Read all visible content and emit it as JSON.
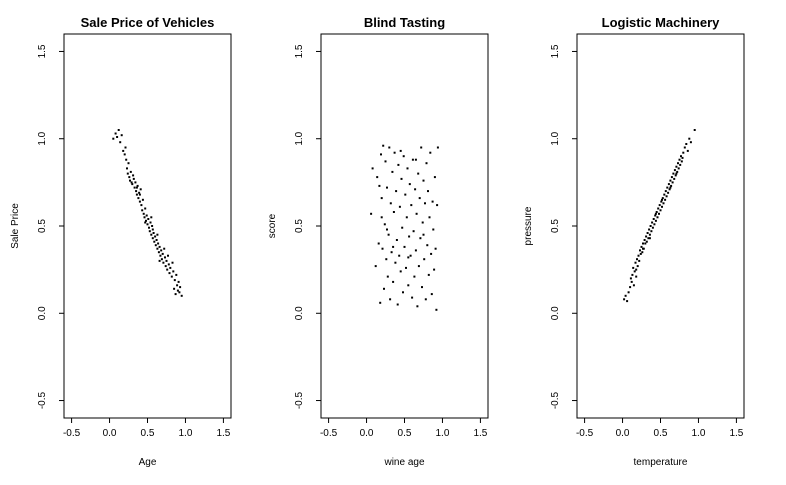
{
  "chart_data": [
    {
      "type": "scatter",
      "title": "Sale Price of Vehicles",
      "xlabel": "Age",
      "ylabel": "Sale Price",
      "xlim": [
        -0.6,
        1.6
      ],
      "ylim": [
        -0.6,
        1.6
      ],
      "x_ticks": [
        "-0.5",
        "0.0",
        "0.5",
        "1.0",
        "1.5"
      ],
      "y_ticks": [
        "-0.5",
        "0.0",
        "0.5",
        "1.0",
        "1.5"
      ],
      "grid": false,
      "points": [
        [
          0.05,
          1.0
        ],
        [
          0.08,
          1.03
        ],
        [
          0.1,
          1.01
        ],
        [
          0.12,
          1.05
        ],
        [
          0.14,
          0.98
        ],
        [
          0.16,
          1.02
        ],
        [
          0.18,
          0.93
        ],
        [
          0.2,
          0.91
        ],
        [
          0.21,
          0.95
        ],
        [
          0.22,
          0.88
        ],
        [
          0.23,
          0.83
        ],
        [
          0.24,
          0.8
        ],
        [
          0.25,
          0.86
        ],
        [
          0.26,
          0.78
        ],
        [
          0.27,
          0.76
        ],
        [
          0.28,
          0.81
        ],
        [
          0.3,
          0.74
        ],
        [
          0.31,
          0.79
        ],
        [
          0.32,
          0.77
        ],
        [
          0.33,
          0.72
        ],
        [
          0.34,
          0.75
        ],
        [
          0.35,
          0.7
        ],
        [
          0.36,
          0.68
        ],
        [
          0.37,
          0.73
        ],
        [
          0.38,
          0.66
        ],
        [
          0.39,
          0.69
        ],
        [
          0.4,
          0.64
        ],
        [
          0.41,
          0.71
        ],
        [
          0.42,
          0.62
        ],
        [
          0.43,
          0.59
        ],
        [
          0.44,
          0.65
        ],
        [
          0.45,
          0.57
        ],
        [
          0.46,
          0.55
        ],
        [
          0.47,
          0.6
        ],
        [
          0.48,
          0.53
        ],
        [
          0.49,
          0.56
        ],
        [
          0.5,
          0.51
        ],
        [
          0.51,
          0.54
        ],
        [
          0.52,
          0.49
        ],
        [
          0.53,
          0.47
        ],
        [
          0.54,
          0.52
        ],
        [
          0.55,
          0.45
        ],
        [
          0.56,
          0.5
        ],
        [
          0.57,
          0.43
        ],
        [
          0.58,
          0.46
        ],
        [
          0.59,
          0.41
        ],
        [
          0.6,
          0.44
        ],
        [
          0.61,
          0.39
        ],
        [
          0.62,
          0.42
        ],
        [
          0.63,
          0.37
        ],
        [
          0.64,
          0.4
        ],
        [
          0.65,
          0.35
        ],
        [
          0.66,
          0.38
        ],
        [
          0.67,
          0.33
        ],
        [
          0.68,
          0.36
        ],
        [
          0.69,
          0.31
        ],
        [
          0.7,
          0.34
        ],
        [
          0.71,
          0.29
        ],
        [
          0.72,
          0.37
        ],
        [
          0.73,
          0.32
        ],
        [
          0.74,
          0.27
        ],
        [
          0.75,
          0.3
        ],
        [
          0.76,
          0.25
        ],
        [
          0.77,
          0.33
        ],
        [
          0.78,
          0.28
        ],
        [
          0.79,
          0.23
        ],
        [
          0.8,
          0.26
        ],
        [
          0.82,
          0.21
        ],
        [
          0.83,
          0.29
        ],
        [
          0.84,
          0.24
        ],
        [
          0.85,
          0.14
        ],
        [
          0.86,
          0.19
        ],
        [
          0.87,
          0.11
        ],
        [
          0.88,
          0.22
        ],
        [
          0.89,
          0.16
        ],
        [
          0.9,
          0.13
        ],
        [
          0.91,
          0.18
        ],
        [
          0.92,
          0.12
        ],
        [
          0.93,
          0.15
        ],
        [
          0.95,
          0.1
        ],
        [
          0.4,
          0.68
        ],
        [
          0.36,
          0.72
        ],
        [
          0.57,
          0.48
        ],
        [
          0.63,
          0.45
        ],
        [
          0.47,
          0.52
        ],
        [
          0.29,
          0.75
        ],
        [
          0.66,
          0.3
        ],
        [
          0.55,
          0.55
        ]
      ]
    },
    {
      "type": "scatter",
      "title": "Blind Tasting",
      "xlabel": "wine age",
      "ylabel": "score",
      "xlim": [
        -0.6,
        1.6
      ],
      "ylim": [
        -0.6,
        1.6
      ],
      "x_ticks": [
        "-0.5",
        "0.0",
        "0.5",
        "1.0",
        "1.5"
      ],
      "y_ticks": [
        "-0.5",
        "0.0",
        "0.5",
        "1.0",
        "1.5"
      ],
      "grid": false,
      "points": [
        [
          0.06,
          0.57
        ],
        [
          0.08,
          0.83
        ],
        [
          0.12,
          0.27
        ],
        [
          0.14,
          0.78
        ],
        [
          0.16,
          0.4
        ],
        [
          0.18,
          0.06
        ],
        [
          0.19,
          0.91
        ],
        [
          0.2,
          0.66
        ],
        [
          0.21,
          0.37
        ],
        [
          0.22,
          0.96
        ],
        [
          0.23,
          0.14
        ],
        [
          0.24,
          0.51
        ],
        [
          0.25,
          0.87
        ],
        [
          0.26,
          0.31
        ],
        [
          0.27,
          0.72
        ],
        [
          0.28,
          0.21
        ],
        [
          0.29,
          0.45
        ],
        [
          0.3,
          0.95
        ],
        [
          0.31,
          0.08
        ],
        [
          0.32,
          0.63
        ],
        [
          0.33,
          0.35
        ],
        [
          0.34,
          0.81
        ],
        [
          0.35,
          0.18
        ],
        [
          0.36,
          0.58
        ],
        [
          0.37,
          0.92
        ],
        [
          0.38,
          0.29
        ],
        [
          0.39,
          0.7
        ],
        [
          0.4,
          0.42
        ],
        [
          0.41,
          0.05
        ],
        [
          0.42,
          0.85
        ],
        [
          0.43,
          0.33
        ],
        [
          0.44,
          0.61
        ],
        [
          0.45,
          0.24
        ],
        [
          0.46,
          0.77
        ],
        [
          0.47,
          0.49
        ],
        [
          0.48,
          0.12
        ],
        [
          0.49,
          0.9
        ],
        [
          0.5,
          0.38
        ],
        [
          0.51,
          0.68
        ],
        [
          0.52,
          0.26
        ],
        [
          0.53,
          0.55
        ],
        [
          0.54,
          0.83
        ],
        [
          0.55,
          0.16
        ],
        [
          0.56,
          0.44
        ],
        [
          0.57,
          0.74
        ],
        [
          0.58,
          0.33
        ],
        [
          0.59,
          0.62
        ],
        [
          0.6,
          0.09
        ],
        [
          0.61,
          0.88
        ],
        [
          0.62,
          0.47
        ],
        [
          0.63,
          0.21
        ],
        [
          0.64,
          0.71
        ],
        [
          0.65,
          0.36
        ],
        [
          0.66,
          0.57
        ],
        [
          0.67,
          0.04
        ],
        [
          0.68,
          0.8
        ],
        [
          0.69,
          0.27
        ],
        [
          0.7,
          0.66
        ],
        [
          0.71,
          0.43
        ],
        [
          0.72,
          0.95
        ],
        [
          0.73,
          0.15
        ],
        [
          0.74,
          0.52
        ],
        [
          0.75,
          0.76
        ],
        [
          0.76,
          0.31
        ],
        [
          0.77,
          0.63
        ],
        [
          0.78,
          0.08
        ],
        [
          0.79,
          0.86
        ],
        [
          0.8,
          0.39
        ],
        [
          0.81,
          0.7
        ],
        [
          0.82,
          0.22
        ],
        [
          0.83,
          0.55
        ],
        [
          0.84,
          0.92
        ],
        [
          0.85,
          0.34
        ],
        [
          0.86,
          0.11
        ],
        [
          0.87,
          0.64
        ],
        [
          0.88,
          0.48
        ],
        [
          0.89,
          0.25
        ],
        [
          0.9,
          0.78
        ],
        [
          0.91,
          0.37
        ],
        [
          0.92,
          0.02
        ],
        [
          0.93,
          0.62
        ],
        [
          0.94,
          0.95
        ],
        [
          0.17,
          0.73
        ],
        [
          0.27,
          0.48
        ],
        [
          0.35,
          0.38
        ],
        [
          0.45,
          0.93
        ],
        [
          0.55,
          0.32
        ],
        [
          0.65,
          0.88
        ],
        [
          0.75,
          0.45
        ],
        [
          0.2,
          0.55
        ]
      ]
    },
    {
      "type": "scatter",
      "title": "Logistic Machinery",
      "xlabel": "temperature",
      "ylabel": "pressure",
      "xlim": [
        -0.6,
        1.6
      ],
      "ylim": [
        -0.6,
        1.6
      ],
      "x_ticks": [
        "-0.5",
        "0.0",
        "0.5",
        "1.0",
        "1.5"
      ],
      "y_ticks": [
        "-0.5",
        "0.0",
        "0.5",
        "1.0",
        "1.5"
      ],
      "grid": false,
      "points": [
        [
          0.02,
          0.08
        ],
        [
          0.04,
          0.1
        ],
        [
          0.06,
          0.07
        ],
        [
          0.08,
          0.12
        ],
        [
          0.1,
          0.15
        ],
        [
          0.11,
          0.2
        ],
        [
          0.12,
          0.18
        ],
        [
          0.13,
          0.22
        ],
        [
          0.14,
          0.26
        ],
        [
          0.15,
          0.16
        ],
        [
          0.16,
          0.24
        ],
        [
          0.17,
          0.29
        ],
        [
          0.18,
          0.21
        ],
        [
          0.19,
          0.31
        ],
        [
          0.2,
          0.27
        ],
        [
          0.21,
          0.33
        ],
        [
          0.22,
          0.3
        ],
        [
          0.23,
          0.36
        ],
        [
          0.24,
          0.34
        ],
        [
          0.25,
          0.38
        ],
        [
          0.26,
          0.35
        ],
        [
          0.27,
          0.4
        ],
        [
          0.28,
          0.37
        ],
        [
          0.29,
          0.42
        ],
        [
          0.3,
          0.4
        ],
        [
          0.31,
          0.44
        ],
        [
          0.32,
          0.41
        ],
        [
          0.33,
          0.46
        ],
        [
          0.34,
          0.43
        ],
        [
          0.35,
          0.48
        ],
        [
          0.36,
          0.45
        ],
        [
          0.37,
          0.5
        ],
        [
          0.38,
          0.47
        ],
        [
          0.39,
          0.52
        ],
        [
          0.4,
          0.49
        ],
        [
          0.41,
          0.54
        ],
        [
          0.42,
          0.51
        ],
        [
          0.43,
          0.56
        ],
        [
          0.44,
          0.53
        ],
        [
          0.45,
          0.58
        ],
        [
          0.46,
          0.55
        ],
        [
          0.47,
          0.6
        ],
        [
          0.48,
          0.57
        ],
        [
          0.49,
          0.62
        ],
        [
          0.5,
          0.59
        ],
        [
          0.51,
          0.64
        ],
        [
          0.52,
          0.61
        ],
        [
          0.53,
          0.66
        ],
        [
          0.54,
          0.63
        ],
        [
          0.55,
          0.68
        ],
        [
          0.56,
          0.65
        ],
        [
          0.57,
          0.7
        ],
        [
          0.58,
          0.67
        ],
        [
          0.59,
          0.72
        ],
        [
          0.6,
          0.69
        ],
        [
          0.61,
          0.74
        ],
        [
          0.62,
          0.71
        ],
        [
          0.63,
          0.76
        ],
        [
          0.64,
          0.73
        ],
        [
          0.65,
          0.78
        ],
        [
          0.66,
          0.75
        ],
        [
          0.67,
          0.8
        ],
        [
          0.68,
          0.77
        ],
        [
          0.69,
          0.82
        ],
        [
          0.7,
          0.79
        ],
        [
          0.71,
          0.84
        ],
        [
          0.72,
          0.81
        ],
        [
          0.73,
          0.86
        ],
        [
          0.74,
          0.83
        ],
        [
          0.75,
          0.88
        ],
        [
          0.76,
          0.85
        ],
        [
          0.77,
          0.9
        ],
        [
          0.78,
          0.87
        ],
        [
          0.8,
          0.92
        ],
        [
          0.82,
          0.95
        ],
        [
          0.84,
          0.97
        ],
        [
          0.86,
          0.93
        ],
        [
          0.88,
          1.0
        ],
        [
          0.9,
          0.98
        ],
        [
          0.95,
          1.05
        ],
        [
          0.18,
          0.25
        ],
        [
          0.27,
          0.37
        ],
        [
          0.36,
          0.43
        ],
        [
          0.44,
          0.57
        ],
        [
          0.52,
          0.65
        ],
        [
          0.63,
          0.72
        ],
        [
          0.71,
          0.8
        ],
        [
          0.79,
          0.89
        ]
      ]
    }
  ]
}
